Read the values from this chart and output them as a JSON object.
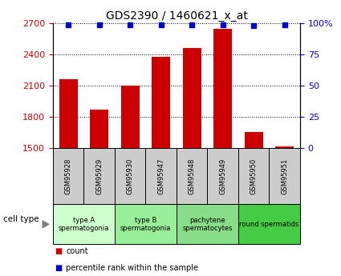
{
  "title": "GDS2390 / 1460621_x_at",
  "samples": [
    "GSM95928",
    "GSM95929",
    "GSM95930",
    "GSM95947",
    "GSM95948",
    "GSM95949",
    "GSM95950",
    "GSM95951"
  ],
  "counts": [
    2160,
    1870,
    2100,
    2375,
    2460,
    2650,
    1650,
    1510
  ],
  "percentile_ranks": [
    99,
    99,
    99,
    99,
    99,
    99,
    98,
    99
  ],
  "ylim_left": [
    1500,
    2700
  ],
  "ylim_right": [
    0,
    100
  ],
  "yticks_left": [
    1500,
    1800,
    2100,
    2400,
    2700
  ],
  "yticks_right": [
    0,
    25,
    50,
    75,
    100
  ],
  "bar_color": "#cc0000",
  "dot_color": "#0000cc",
  "groups": [
    {
      "label": "type A\nspermatogonia",
      "start": 0,
      "end": 2,
      "color": "#ccffcc"
    },
    {
      "label": "type B\nspermatogonia",
      "start": 2,
      "end": 4,
      "color": "#99ee99"
    },
    {
      "label": "pachytene\nspermatocytes",
      "start": 4,
      "end": 6,
      "color": "#88dd88"
    },
    {
      "label": "round spermatids",
      "start": 6,
      "end": 8,
      "color": "#44cc44"
    }
  ],
  "cell_type_label": "cell type",
  "legend_count_label": "count",
  "legend_pct_label": "percentile rank within the sample",
  "tick_label_color_left": "#cc0000",
  "tick_label_color_right": "#0000cc",
  "background_color": "#ffffff",
  "grid_color": "#000000",
  "sample_box_color": "#cccccc"
}
